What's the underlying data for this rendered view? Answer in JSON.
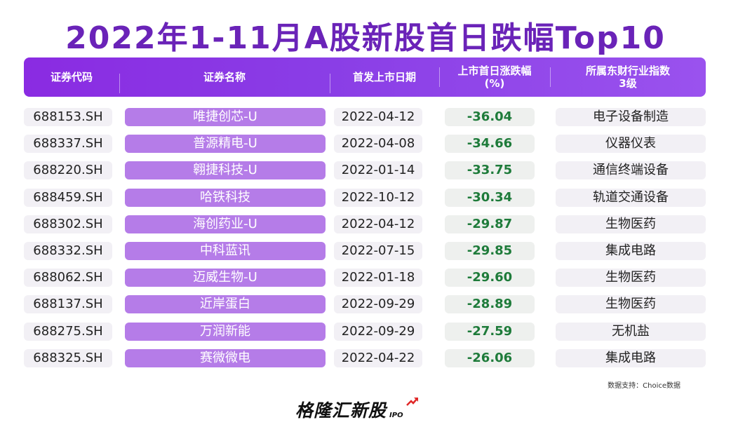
{
  "title": "2022年1-11月A股新股首日跌幅Top10",
  "columns": {
    "code": "证券代码",
    "name": "证券名称",
    "date": "首发上市日期",
    "change_line1": "上市首日涨跌幅",
    "change_line2": "(%)",
    "industry_line1": "所属东财行业指数",
    "industry_line2": "3级"
  },
  "rows": [
    {
      "code": "688153.SH",
      "name": "唯捷创芯-U",
      "date": "2022-04-12",
      "change": "-36.04",
      "industry": "电子设备制造"
    },
    {
      "code": "688337.SH",
      "name": "普源精电-U",
      "date": "2022-04-08",
      "change": "-34.66",
      "industry": "仪器仪表"
    },
    {
      "code": "688220.SH",
      "name": "翱捷科技-U",
      "date": "2022-01-14",
      "change": "-33.75",
      "industry": "通信终端设备"
    },
    {
      "code": "688459.SH",
      "name": "哈铁科技",
      "date": "2022-10-12",
      "change": "-30.34",
      "industry": "轨道交通设备"
    },
    {
      "code": "688302.SH",
      "name": "海创药业-U",
      "date": "2022-04-12",
      "change": "-29.87",
      "industry": "生物医药"
    },
    {
      "code": "688332.SH",
      "name": "中科蓝讯",
      "date": "2022-07-15",
      "change": "-29.85",
      "industry": "集成电路"
    },
    {
      "code": "688062.SH",
      "name": "迈威生物-U",
      "date": "2022-01-18",
      "change": "-29.60",
      "industry": "生物医药"
    },
    {
      "code": "688137.SH",
      "name": "近岸蛋白",
      "date": "2022-09-29",
      "change": "-28.89",
      "industry": "生物医药"
    },
    {
      "code": "688275.SH",
      "name": "万润新能",
      "date": "2022-09-29",
      "change": "-27.59",
      "industry": "无机盐"
    },
    {
      "code": "688325.SH",
      "name": "赛微微电",
      "date": "2022-04-22",
      "change": "-26.06",
      "industry": "集成电路"
    }
  ],
  "source": "数据支持：Choice数据",
  "logo": {
    "main": "格隆汇新股",
    "sub": "IPO"
  },
  "colors": {
    "title": "#6a23b8",
    "header": "#8a2be2",
    "name_cell": "#b57ce8",
    "negative": "#1e7b3a",
    "logo_arrow": "#e02828"
  }
}
